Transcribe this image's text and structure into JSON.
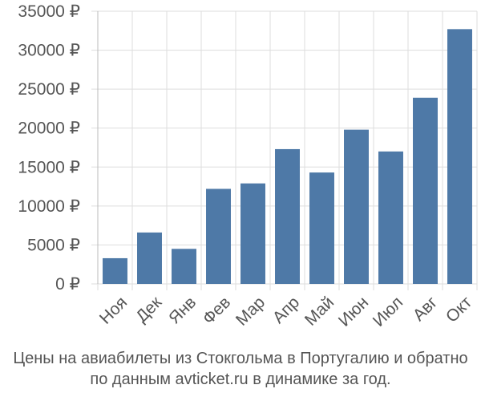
{
  "chart_data": {
    "type": "bar",
    "categories": [
      "Ноя",
      "Дек",
      "Янв",
      "Фев",
      "Мар",
      "Апр",
      "Май",
      "Июн",
      "Июл",
      "Авг",
      "Окт"
    ],
    "values": [
      3300,
      6600,
      4500,
      12200,
      12900,
      17300,
      14300,
      19800,
      17000,
      23900,
      32700
    ],
    "ylim": [
      0,
      35000
    ],
    "yticks": [
      0,
      5000,
      10000,
      15000,
      20000,
      25000,
      30000,
      35000
    ],
    "ytick_labels": [
      "0 ₽",
      "5000 ₽",
      "10000 ₽",
      "15000 ₽",
      "20000 ₽",
      "25000 ₽",
      "30000 ₽",
      "35000 ₽"
    ],
    "grid": true,
    "bar_color": "#4e79a7",
    "caption_line1": "Цены на авиабилеты из Стокгольма в Португалию и обратно",
    "caption_line2": "по данным avticket.ru в динамике за год."
  }
}
